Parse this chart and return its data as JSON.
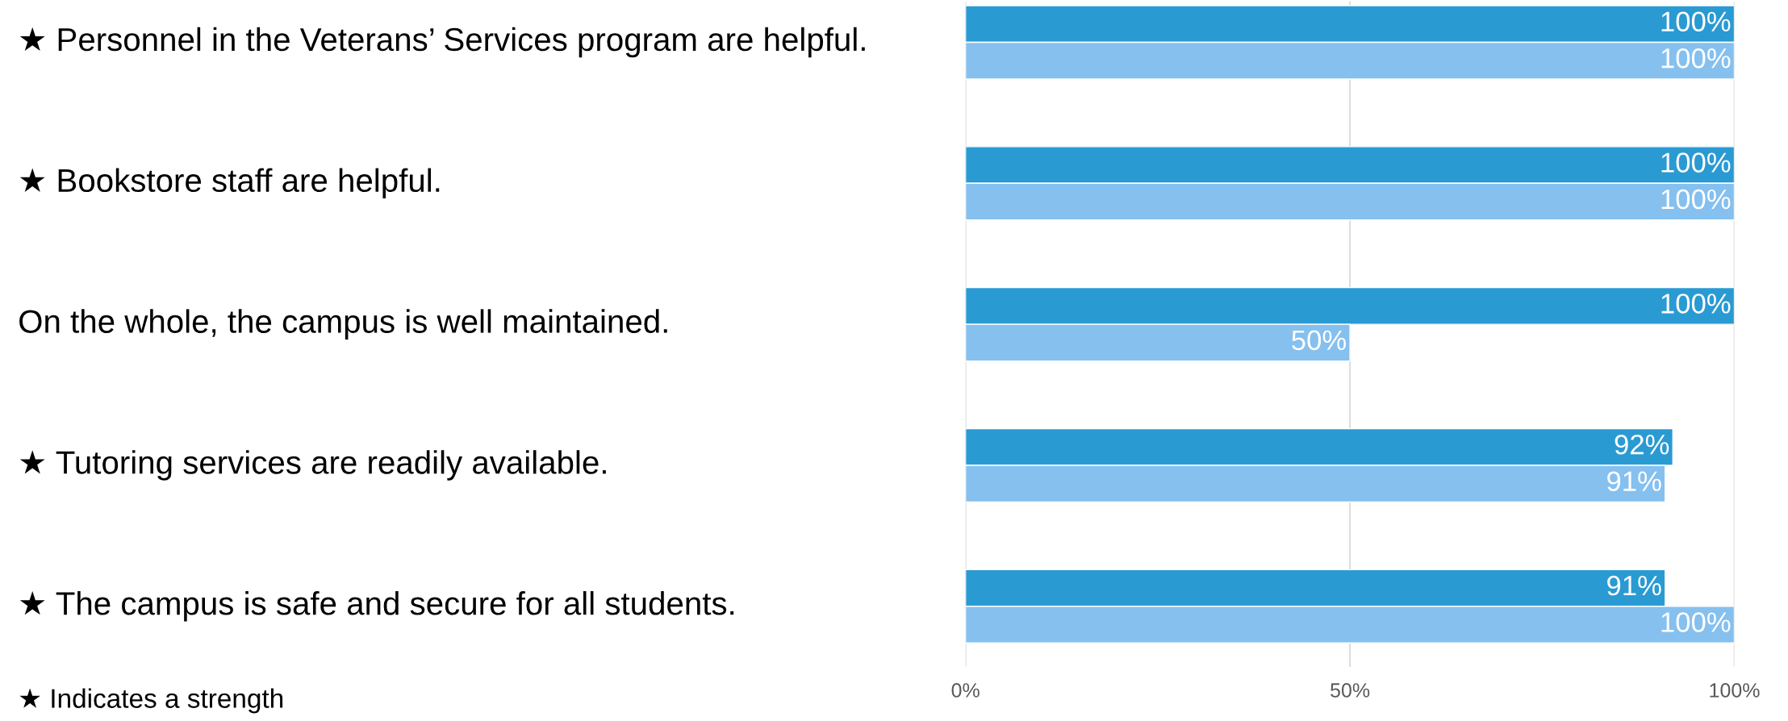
{
  "chart_data": {
    "type": "bar",
    "orientation": "horizontal",
    "categories": [
      "★ Personnel in the Veterans’ Services program are helpful.",
      "★ Bookstore staff are helpful.",
      "On the whole, the campus is well maintained.",
      "★ Tutoring services are readily available.",
      "★ The campus is safe and secure for all students."
    ],
    "series": [
      {
        "color": "#2a9ad3",
        "values": [
          100,
          100,
          100,
          92,
          91
        ],
        "value_labels": [
          "100%",
          "100%",
          "100%",
          "92%",
          "91%"
        ]
      },
      {
        "color": "#85c0ef",
        "values": [
          100,
          100,
          50,
          91,
          100
        ],
        "value_labels": [
          "100%",
          "100%",
          "50%",
          "91%",
          "100%"
        ]
      }
    ],
    "xlim": [
      0,
      100
    ],
    "xticks": [
      {
        "value": 0,
        "label": "0%"
      },
      {
        "value": 50,
        "label": "50%"
      },
      {
        "value": 100,
        "label": "100%"
      }
    ],
    "grid": "x",
    "annotations": [
      "★ Indicates a strength"
    ]
  }
}
